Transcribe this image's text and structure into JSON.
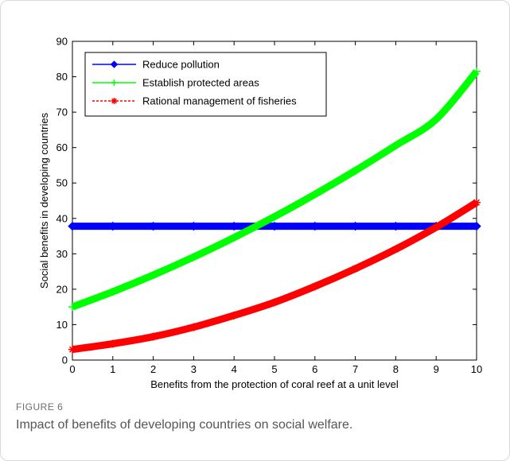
{
  "chart_data": {
    "type": "line",
    "title": "",
    "xlabel": "Benefits from the protection of coral reef at a unit level",
    "ylabel": "Social benefits in developing countries",
    "xlim": [
      0,
      10
    ],
    "ylim": [
      0,
      90
    ],
    "x_ticks": [
      "0",
      "1",
      "2",
      "3",
      "4",
      "5",
      "6",
      "7",
      "8",
      "9",
      "10"
    ],
    "y_ticks": [
      "0",
      "10",
      "20",
      "30",
      "40",
      "50",
      "60",
      "70",
      "80",
      "90"
    ],
    "grid": false,
    "legend_position": "top-left",
    "x": [
      0,
      1,
      2,
      3,
      4,
      5,
      6,
      7,
      8,
      9,
      10
    ],
    "series": [
      {
        "name": "Reduce pollution",
        "color": "#0000ff",
        "marker": "diamond",
        "values": [
          37.8,
          37.8,
          37.8,
          37.8,
          37.8,
          37.8,
          37.8,
          37.8,
          37.8,
          37.8,
          37.8
        ]
      },
      {
        "name": "Establish protected areas",
        "color": "#00ff00",
        "marker": "plus",
        "values": [
          15,
          19.3,
          24,
          29.1,
          34.6,
          40.5,
          46.8,
          53.5,
          60.6,
          68,
          81.5
        ]
      },
      {
        "name": "Rational management of fisheries",
        "color": "#ff0000",
        "marker": "star",
        "values": [
          3,
          4.6,
          6.6,
          9.3,
          12.6,
          16.3,
          20.8,
          25.8,
          31.3,
          37.5,
          44.5
        ]
      }
    ]
  },
  "caption": {
    "label": "FIGURE 6",
    "text": "Impact of benefits of developing countries on social welfare."
  }
}
